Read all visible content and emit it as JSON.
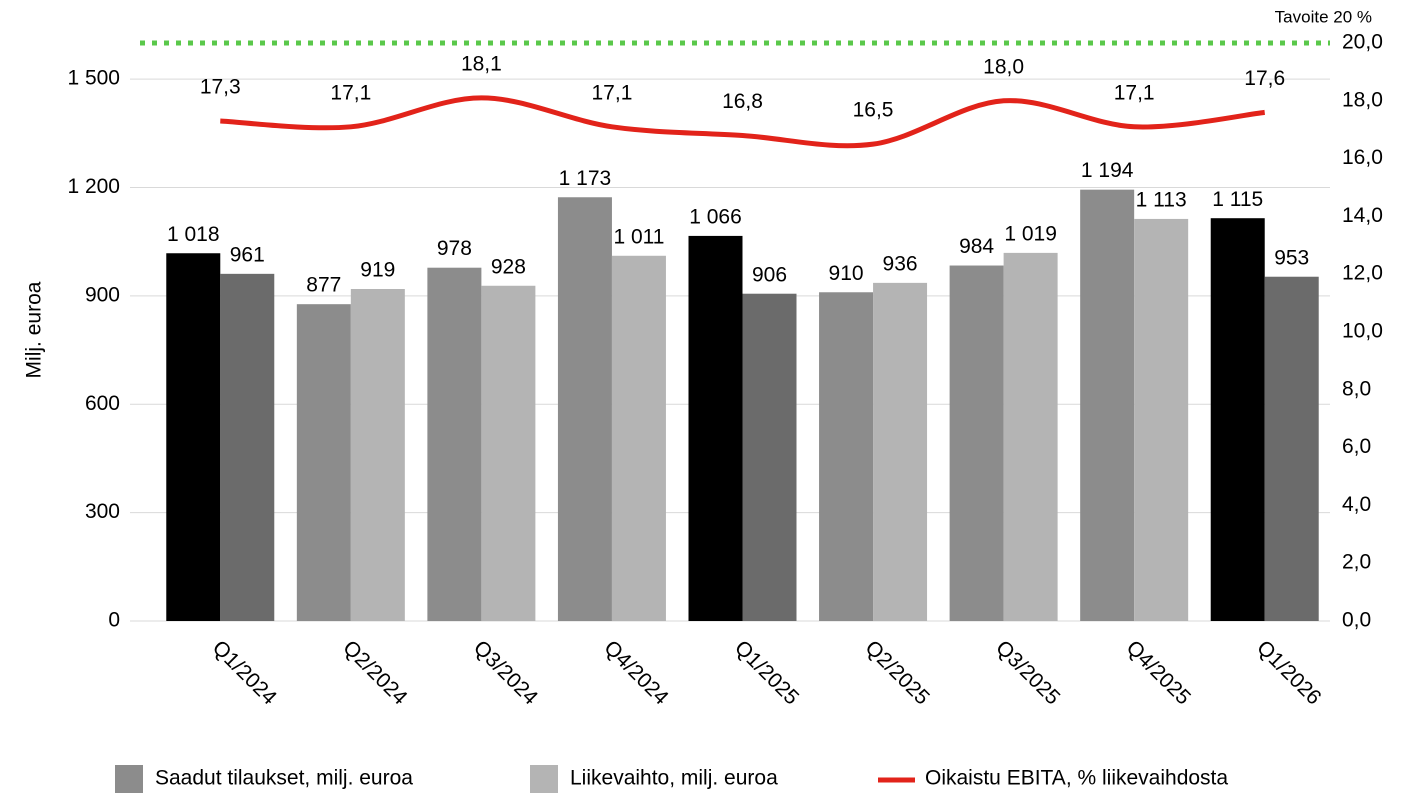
{
  "chart_data": {
    "type": "bar_line",
    "y_label": "Milj. euroa",
    "categories": [
      "Q1/2024",
      "Q2/2024",
      "Q3/2024",
      "Q4/2024",
      "Q1/2025",
      "Q2/2025",
      "Q3/2025",
      "Q4/2025",
      "Q1/2026"
    ],
    "series": [
      {
        "name": "Saadut tilaukset, milj. euroa",
        "type": "bar",
        "color": "#8c8c8c",
        "colors": [
          "#000000",
          "#8c8c8c",
          "#8c8c8c",
          "#8c8c8c",
          "#000000",
          "#8c8c8c",
          "#8c8c8c",
          "#8c8c8c",
          "#000000"
        ],
        "values": [
          1018,
          877,
          978,
          1173,
          1066,
          910,
          984,
          1194,
          1115
        ],
        "value_labels": [
          "1 018",
          "877",
          "978",
          "1 173",
          "1 066",
          "910",
          "984",
          "1 194",
          "1 115"
        ]
      },
      {
        "name": "Liikevaihto, milj. euroa",
        "type": "bar",
        "color": "#b4b4b4",
        "colors": [
          "#6b6b6b",
          "#b4b4b4",
          "#b4b4b4",
          "#b4b4b4",
          "#6b6b6b",
          "#b4b4b4",
          "#b4b4b4",
          "#b4b4b4",
          "#6b6b6b"
        ],
        "values": [
          961,
          919,
          928,
          1011,
          906,
          936,
          1019,
          1113,
          953
        ],
        "value_labels": [
          "961",
          "919",
          "928",
          "1 011",
          "906",
          "936",
          "1 019",
          "1 113",
          "953"
        ]
      },
      {
        "name": "Oikaistu EBITA, % liikevaihdosta",
        "type": "line",
        "axis": "y2",
        "color": "#e2231a",
        "values": [
          17.3,
          17.1,
          18.1,
          17.1,
          16.8,
          16.5,
          18.0,
          17.1,
          17.6
        ],
        "value_labels": [
          "17,3",
          "17,1",
          "18,1",
          "17,1",
          "16,8",
          "16,5",
          "18,0",
          "17,1",
          "17,6"
        ]
      }
    ],
    "target": {
      "value": 20,
      "label": "Tavoite 20 %",
      "color": "#5ac84a"
    },
    "ylim": [
      0,
      1600
    ],
    "yticks": [
      0,
      300,
      600,
      900,
      {
        "value": 1200,
        "label": "1 200"
      },
      {
        "value": 1500,
        "label": "1 500"
      }
    ],
    "y2lim": [
      0,
      20
    ],
    "y2ticks": [
      {
        "value": 0,
        "label": "0,0"
      },
      {
        "value": 2,
        "label": "2,0"
      },
      {
        "value": 4,
        "label": "4,0"
      },
      {
        "value": 6,
        "label": "6,0"
      },
      {
        "value": 8,
        "label": "8,0"
      },
      {
        "value": 10,
        "label": "10,0"
      },
      {
        "value": 12,
        "label": "12,0"
      },
      {
        "value": 14,
        "label": "14,0"
      },
      {
        "value": 16,
        "label": "16,0"
      },
      {
        "value": 18,
        "label": "18,0"
      },
      {
        "value": 20,
        "label": "20,0"
      }
    ],
    "grid": true
  }
}
